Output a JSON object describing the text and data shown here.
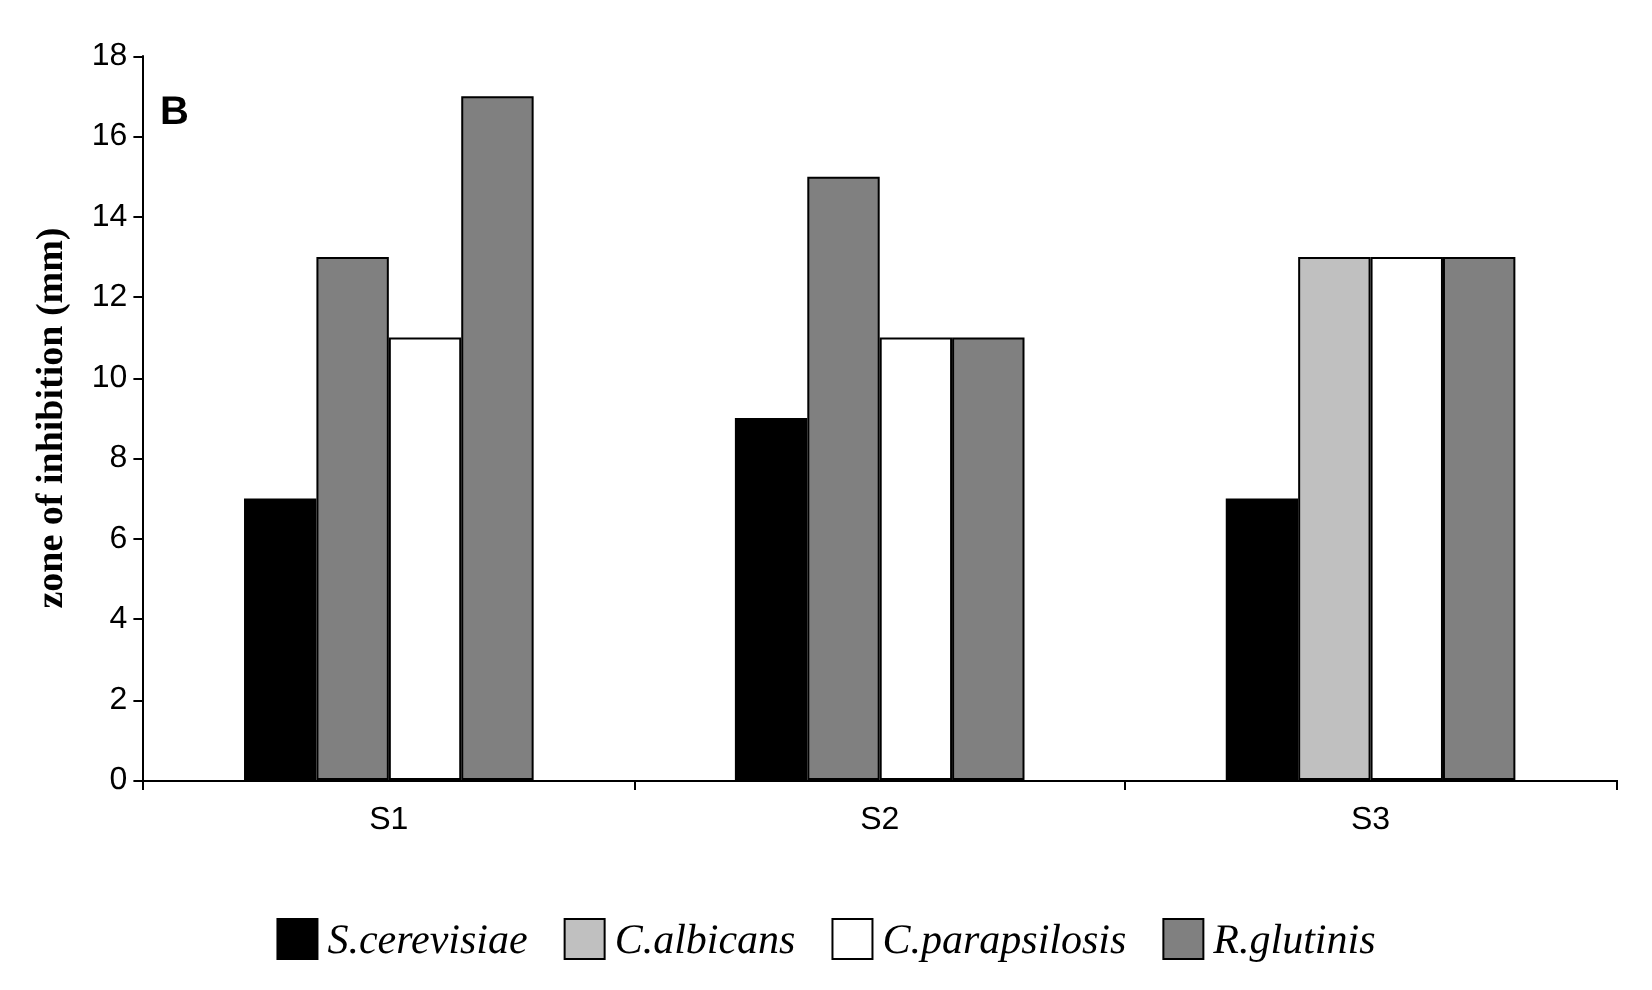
{
  "chart_data": {
    "type": "bar",
    "ylabel": "zone of inhibition (mm)",
    "categories": [
      "S1",
      "S2",
      "S3"
    ],
    "series": [
      {
        "name": "S.cerevisiae",
        "color": "#000000",
        "values": [
          7,
          9,
          7
        ]
      },
      {
        "name": "C.albicans",
        "color": "#c0c0c0",
        "colors": [
          "#808080",
          "#808080",
          "#c0c0c0"
        ],
        "values": [
          13,
          15,
          13
        ]
      },
      {
        "name": "C.parapsilosis",
        "color": "#ffffff",
        "values": [
          11,
          11,
          13
        ]
      },
      {
        "name": "R.glutinis",
        "color": "#808080",
        "values": [
          17,
          11,
          13
        ]
      }
    ],
    "ylim": [
      0,
      18
    ],
    "yticks": [
      0,
      2,
      4,
      6,
      8,
      10,
      12,
      14,
      16,
      18
    ],
    "grid": false,
    "legend": "bottom",
    "annotations": [
      "B"
    ]
  }
}
